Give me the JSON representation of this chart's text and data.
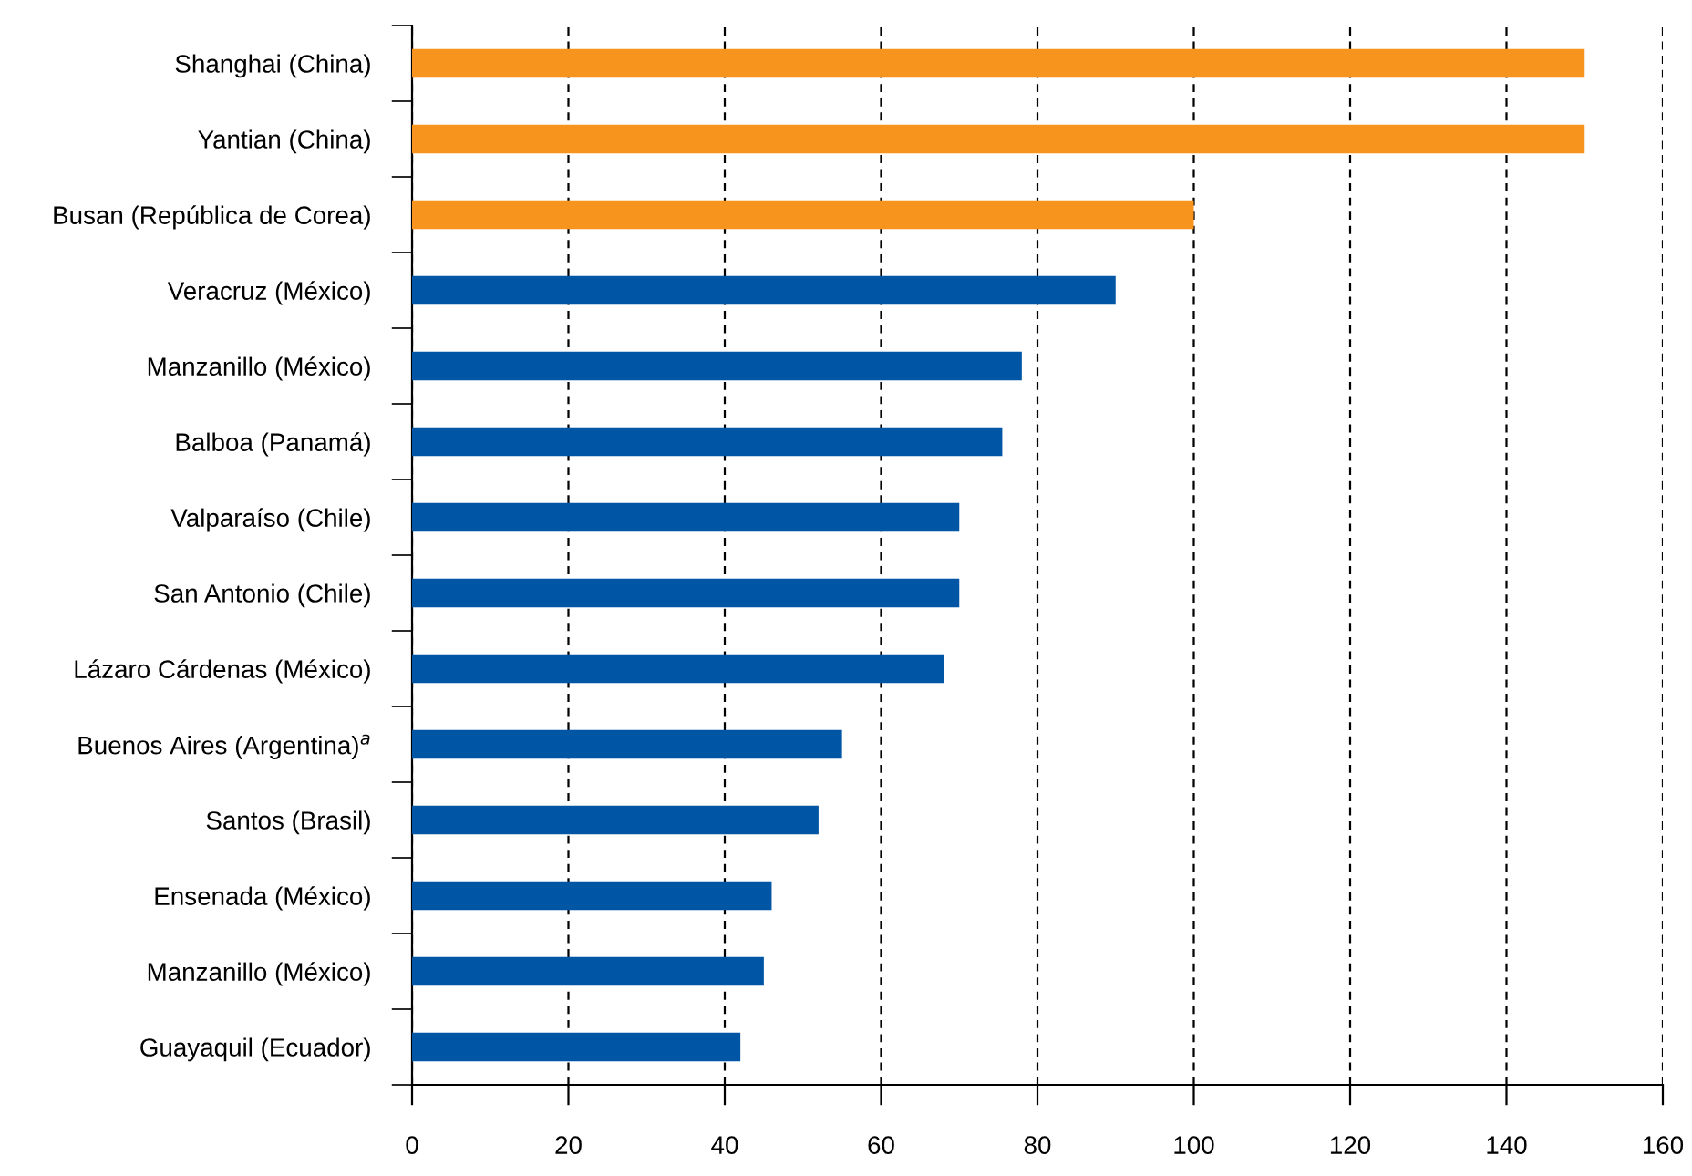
{
  "chart_data": {
    "type": "bar",
    "orientation": "horizontal",
    "categories": [
      "Shanghai (China)",
      "Yantian (China)",
      "Busan (República de Corea)",
      "Veracruz (México)",
      "Manzanillo (México)",
      "Balboa (Panamá)",
      "Valparaíso (Chile)",
      "San Antonio (Chile)",
      "Lázaro Cárdenas (México)",
      "Buenos Aires (Argentina)$^{a}$",
      "Santos (Brasil)",
      "Ensenada (México)",
      "Manzanillo (México)",
      "Guayaquil (Ecuador)"
    ],
    "values": [
      150,
      150,
      100,
      90,
      78,
      75.5,
      70,
      70,
      68,
      55,
      52,
      46,
      45,
      42
    ],
    "colors": [
      "#f7941d",
      "#f7941d",
      "#f7941d",
      "#0055a5",
      "#0055a5",
      "#0055a5",
      "#0055a5",
      "#0055a5",
      "#0055a5",
      "#0055a5",
      "#0055a5",
      "#0055a5",
      "#0055a5",
      "#0055a5"
    ],
    "xlim": [
      0,
      160
    ],
    "xticks": [
      0,
      20,
      40,
      60,
      80,
      100,
      120,
      140,
      160
    ],
    "grid": "x",
    "legend": false
  }
}
